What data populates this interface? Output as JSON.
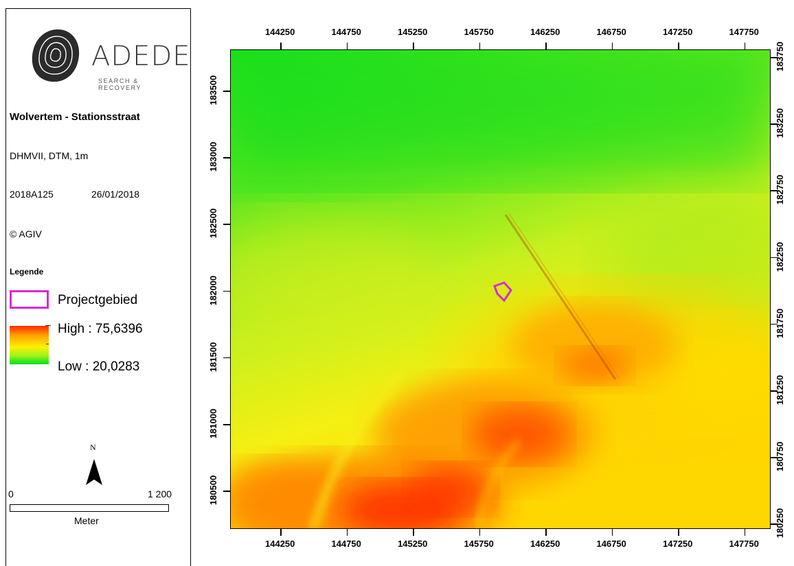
{
  "panel": {
    "logo": {
      "name": "ADEDE",
      "tagline": "SEARCH & RECOVERY"
    },
    "title": "Wolvertem - Stationsstraat",
    "source": "DHMVII, DTM, 1m",
    "project_code": "2018A125",
    "date": "26/01/2018",
    "copyright": "© AGIV",
    "legend": {
      "title": "Legende",
      "project_label": "Projectgebied",
      "project_color": "#d72ad5",
      "high_label": "High : 75,6396",
      "low_label": "Low : 20,0283"
    },
    "north_label": "N",
    "scalebar": {
      "start": "0",
      "end": "1 200",
      "unit": "Meter"
    }
  },
  "map": {
    "x_ticks": [
      "144250",
      "144750",
      "145250",
      "145750",
      "146250",
      "146750",
      "147250",
      "147750"
    ],
    "y_ticks_left": [
      "183500",
      "183000",
      "182500",
      "182000",
      "181500",
      "181000",
      "180500"
    ],
    "y_ticks_right": [
      "183750",
      "183250",
      "182750",
      "182250",
      "181750",
      "181250",
      "180750",
      "180250"
    ],
    "elevation_range": {
      "high": 75.6396,
      "low": 20.0283
    },
    "colors": {
      "high": "#ff2a00",
      "mid": "#fff000",
      "low": "#00e01e"
    }
  }
}
